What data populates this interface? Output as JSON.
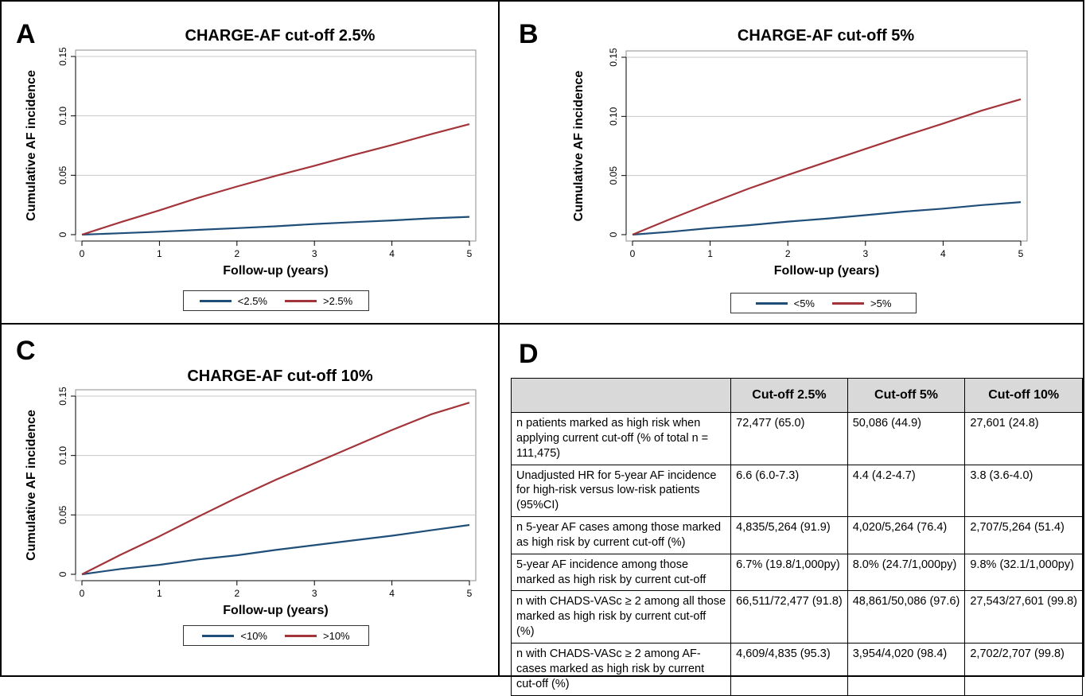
{
  "colors": {
    "low": "#1f4e79",
    "high": "#a3343a",
    "grid": "#c8c8c8",
    "table_header": "#d9d9d9"
  },
  "panels": {
    "A": {
      "letter": "A",
      "title": "CHARGE-AF cut-off 2.5%",
      "legend_low": "<2.5%",
      "legend_high": ">2.5%"
    },
    "B": {
      "letter": "B",
      "title": "CHARGE-AF cut-off 5%",
      "legend_low": "<5%",
      "legend_high": ">5%"
    },
    "C": {
      "letter": "C",
      "title": "CHARGE-AF cut-off 10%",
      "legend_low": "<10%",
      "legend_high": ">10%"
    },
    "D": {
      "letter": "D"
    }
  },
  "chart_data": [
    {
      "type": "line",
      "title": "CHARGE-AF cut-off 2.5%",
      "xlabel": "Follow-up (years)",
      "ylabel": "Cumulative AF incidence",
      "xlim": [
        0,
        5
      ],
      "ylim": [
        0,
        0.15
      ],
      "xticks": [
        "0",
        "1",
        "2",
        "3",
        "4",
        "5"
      ],
      "yticks": [
        "0",
        "0.05",
        "0.10",
        "0.15"
      ],
      "grid": true,
      "legend": "bottom",
      "x": [
        0,
        0.5,
        1,
        1.5,
        2,
        2.5,
        3,
        3.5,
        4,
        4.5,
        5
      ],
      "series": [
        {
          "name": "<2.5%",
          "values": [
            0,
            0.0012,
            0.0025,
            0.004,
            0.0055,
            0.007,
            0.009,
            0.0105,
            0.012,
            0.0137,
            0.015
          ]
        },
        {
          "name": ">2.5%",
          "values": [
            0,
            0.0105,
            0.0205,
            0.031,
            0.0405,
            0.0495,
            0.058,
            0.067,
            0.0755,
            0.0845,
            0.093
          ]
        }
      ]
    },
    {
      "type": "line",
      "title": "CHARGE-AF cut-off 5%",
      "xlabel": "Follow-up (years)",
      "ylabel": "Cumulative AF incidence",
      "xlim": [
        0,
        5
      ],
      "ylim": [
        0,
        0.15
      ],
      "xticks": [
        "0",
        "1",
        "2",
        "3",
        "4",
        "5"
      ],
      "yticks": [
        "0",
        "0.05",
        "0.10",
        "0.15"
      ],
      "grid": true,
      "legend": "bottom",
      "x": [
        0,
        0.5,
        1,
        1.5,
        2,
        2.5,
        3,
        3.5,
        4,
        4.5,
        5
      ],
      "series": [
        {
          "name": "<5%",
          "values": [
            0,
            0.0025,
            0.0055,
            0.008,
            0.011,
            0.0135,
            0.0165,
            0.0195,
            0.022,
            0.025,
            0.0275
          ]
        },
        {
          "name": ">5%",
          "values": [
            0,
            0.0135,
            0.0265,
            0.039,
            0.0505,
            0.0615,
            0.0725,
            0.0835,
            0.094,
            0.105,
            0.1145
          ]
        }
      ]
    },
    {
      "type": "line",
      "title": "CHARGE-AF cut-off 10%",
      "xlabel": "Follow-up (years)",
      "ylabel": "Cumulative AF incidence",
      "xlim": [
        0,
        5
      ],
      "ylim": [
        0,
        0.15
      ],
      "xticks": [
        "0",
        "1",
        "2",
        "3",
        "4",
        "5"
      ],
      "yticks": [
        "0",
        "0.05",
        "0.10",
        "0.15"
      ],
      "grid": true,
      "legend": "bottom",
      "x": [
        0,
        0.5,
        1,
        1.5,
        2,
        2.5,
        3,
        3.5,
        4,
        4.5,
        5
      ],
      "series": [
        {
          "name": "<10%",
          "values": [
            0,
            0.0045,
            0.008,
            0.0125,
            0.016,
            0.0205,
            0.0245,
            0.0285,
            0.0325,
            0.037,
            0.0415
          ]
        },
        {
          "name": ">10%",
          "values": [
            0,
            0.0165,
            0.032,
            0.0485,
            0.0645,
            0.0795,
            0.0935,
            0.1075,
            0.1215,
            0.1345,
            0.1445
          ]
        }
      ]
    },
    {
      "type": "table",
      "headers": [
        "",
        "Cut-off 2.5%",
        "Cut-off 5%",
        "Cut-off 10%"
      ],
      "rows": [
        {
          "label": "n patients marked as high risk when applying current cut-off (% of total n = 111,475)",
          "values": [
            "72,477 (65.0)",
            "50,086 (44.9)",
            "27,601 (24.8)"
          ]
        },
        {
          "label": "Unadjusted HR for 5-year AF incidence for high-risk versus low-risk patients (95%CI)",
          "values": [
            "6.6 (6.0-7.3)",
            "4.4 (4.2-4.7)",
            "3.8 (3.6-4.0)"
          ]
        },
        {
          "label": "n 5-year AF cases among those marked as high risk by current cut-off (%)",
          "values": [
            "4,835/5,264 (91.9)",
            "4,020/5,264 (76.4)",
            "2,707/5,264 (51.4)"
          ]
        },
        {
          "label": "5-year AF incidence among those marked as high risk by current cut-off",
          "values": [
            "6.7% (19.8/1,000py)",
            "8.0% (24.7/1,000py)",
            "9.8% (32.1/1,000py)"
          ]
        },
        {
          "label": "n with CHADS-VASc ≥ 2 among all those marked as high risk by current cut-off (%)",
          "values": [
            "66,511/72,477 (91.8)",
            "48,861/50,086 (97.6)",
            "27,543/27,601 (99.8)"
          ]
        },
        {
          "label": "n with CHADS-VASc ≥ 2 among AF-cases marked as high risk by current cut-off (%)",
          "values": [
            "4,609/4,835 (95.3)",
            "3,954/4,020 (98.4)",
            "2,702/2,707 (99.8)"
          ]
        }
      ]
    }
  ]
}
